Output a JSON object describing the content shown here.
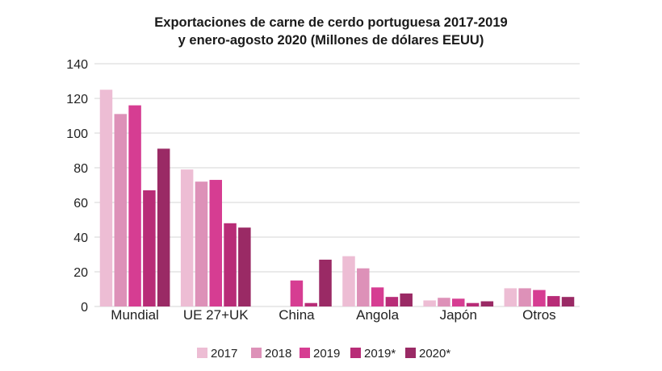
{
  "chart_data": {
    "type": "bar",
    "title": "Exportaciones de carne de cerdo portuguesa 2017-2019",
    "subtitle": "y enero-agosto 2020 (Millones de dólares EEUU)",
    "categories": [
      "Mundial",
      "UE 27+UK",
      "China",
      "Angola",
      "Japón",
      "Otros"
    ],
    "series": [
      {
        "name": "2017",
        "color": "#edbdd4",
        "values": [
          125,
          79,
          null,
          29,
          3.5,
          10.5
        ]
      },
      {
        "name": "2018",
        "color": "#dd91b8",
        "values": [
          111,
          72,
          null,
          22,
          5,
          10.5
        ]
      },
      {
        "name": "2019",
        "color": "#d63d92",
        "values": [
          116,
          73,
          15,
          11,
          4.5,
          9.5
        ]
      },
      {
        "name": "2019*",
        "color": "#b82c77",
        "values": [
          67,
          48,
          2,
          5.5,
          2,
          6
        ]
      },
      {
        "name": "2020*",
        "color": "#9a2a65",
        "values": [
          91,
          45.5,
          27,
          7.5,
          3,
          5.5
        ]
      }
    ],
    "ylim": [
      0,
      140
    ],
    "yticks": [
      0,
      20,
      40,
      60,
      80,
      100,
      120,
      140
    ],
    "xlabel": "",
    "ylabel": "",
    "grid": true,
    "legend_position": "bottom"
  }
}
